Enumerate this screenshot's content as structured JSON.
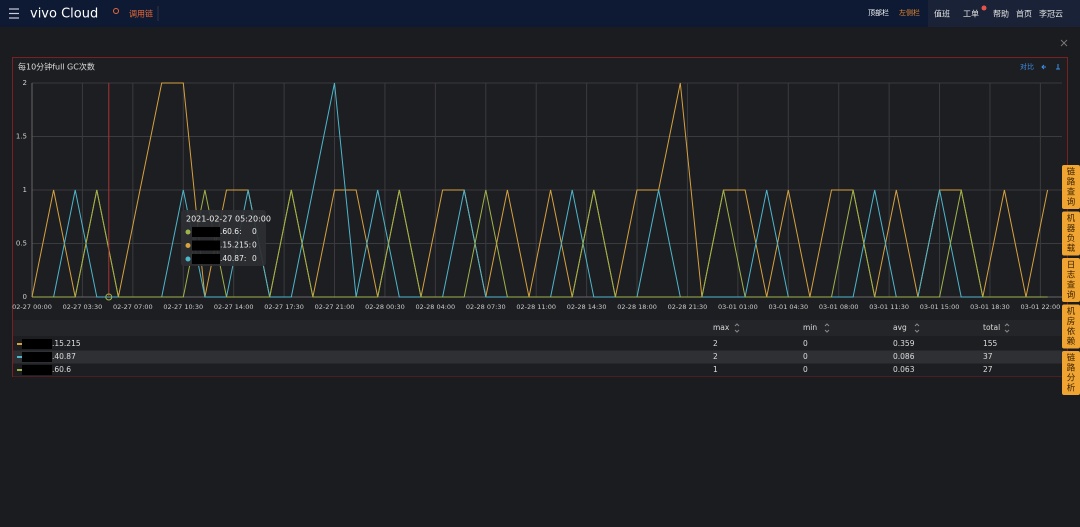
{
  "header": {
    "brand": "vivo Cloud",
    "app": "调用链",
    "layout_options": [
      "顶部栏",
      "左侧栏"
    ],
    "links": [
      "值班",
      "工单",
      "帮助",
      "首页",
      "李冠云"
    ]
  },
  "side_tabs": [
    "链路查询",
    "机器负载",
    "日志查询",
    "机房依赖",
    "链路分析"
  ],
  "chart_data": {
    "type": "line",
    "title": "每10分钟full GC次数",
    "compare": "对比",
    "x": [
      0,
      1.5,
      3,
      4.5,
      6,
      7.5,
      9,
      10.5,
      12,
      13.5,
      15,
      16.5,
      18,
      19.5,
      21,
      22.5,
      24,
      25.5,
      27,
      28.5,
      30,
      31.5,
      33,
      34.5,
      36,
      37.5,
      39,
      40.5,
      42,
      43.5,
      45,
      46.5,
      48,
      49.5,
      51,
      52.5,
      54,
      55.5,
      57,
      58.5,
      60,
      61.5,
      63,
      64.5,
      66,
      67.5,
      69,
      70.5
    ],
    "series": [
      {
        "name": ".15.215",
        "color": "#d6a13f",
        "values": [
          0,
          1,
          0,
          1,
          0,
          1,
          2,
          2,
          0,
          1,
          1,
          0,
          1,
          0,
          1,
          1,
          0,
          1,
          0,
          1,
          1,
          0,
          1,
          0,
          1,
          0,
          1,
          0,
          1,
          1,
          2,
          0,
          1,
          1,
          0,
          1,
          0,
          1,
          1,
          0,
          1,
          0,
          1,
          1,
          0,
          1,
          0,
          1
        ]
      },
      {
        "name": ".40.87",
        "color": "#4db6cc",
        "values": [
          0,
          0,
          1,
          0,
          0,
          0,
          0,
          1,
          0,
          0,
          1,
          0,
          0,
          1,
          2,
          0,
          1,
          0,
          0,
          0,
          1,
          0,
          0,
          0,
          0,
          1,
          0,
          0,
          0,
          1,
          0,
          0,
          0,
          0,
          1,
          0,
          0,
          0,
          0,
          1,
          0,
          0,
          1,
          0,
          0,
          0,
          0,
          0
        ]
      },
      {
        "name": ".60.6",
        "color": "#9fb24a",
        "values": [
          0,
          0,
          0,
          1,
          0,
          0,
          0,
          0,
          1,
          0,
          0,
          0,
          1,
          0,
          0,
          0,
          0,
          1,
          0,
          0,
          0,
          1,
          0,
          0,
          0,
          0,
          1,
          0,
          0,
          0,
          0,
          0,
          1,
          0,
          0,
          0,
          0,
          0,
          1,
          0,
          0,
          0,
          0,
          1,
          0,
          0,
          0,
          0
        ]
      }
    ],
    "xlim": [
      0,
      71.5
    ],
    "xticks": [
      {
        "value": 0,
        "label": "02-27 00:00"
      },
      {
        "value": 3.5,
        "label": "02-27 03:30"
      },
      {
        "value": 7,
        "label": "02-27 07:00"
      },
      {
        "value": 10.5,
        "label": "02-27 10:30"
      },
      {
        "value": 14,
        "label": "02-27 14:00"
      },
      {
        "value": 17.5,
        "label": "02-27 17:30"
      },
      {
        "value": 21,
        "label": "02-27 21:00"
      },
      {
        "value": 24.5,
        "label": "02-28 00:30"
      },
      {
        "value": 28,
        "label": "02-28 04:00"
      },
      {
        "value": 31.5,
        "label": "02-28 07:30"
      },
      {
        "value": 35,
        "label": "02-28 11:00"
      },
      {
        "value": 38.5,
        "label": "02-28 14:30"
      },
      {
        "value": 42,
        "label": "02-28 18:00"
      },
      {
        "value": 45.5,
        "label": "02-28 21:30"
      },
      {
        "value": 49,
        "label": "03-01 01:00"
      },
      {
        "value": 52.5,
        "label": "03-01 04:30"
      },
      {
        "value": 56,
        "label": "03-01 08:00"
      },
      {
        "value": 59.5,
        "label": "03-01 11:30"
      },
      {
        "value": 63,
        "label": "03-01 15:00"
      },
      {
        "value": 66.5,
        "label": "03-01 18:30"
      },
      {
        "value": 70,
        "label": "03-01 22:00"
      }
    ],
    "ylim": [
      0,
      2
    ],
    "yticks": [
      0,
      0.5,
      1,
      1.5,
      2
    ],
    "grid": true,
    "tooltip": {
      "time": "2021-02-27 05:20:00",
      "x": 5.33,
      "items": [
        {
          "name": ".60.6:",
          "color": "#9fb24a",
          "value": 0
        },
        {
          "name": ".15.215:",
          "color": "#d6a13f",
          "value": 0
        },
        {
          "name": ".40.87:",
          "color": "#4db6cc",
          "value": 0
        }
      ]
    },
    "stats": {
      "columns": [
        "max",
        "min",
        "avg",
        "total"
      ],
      "rows": [
        [
          2,
          0,
          0.359,
          155
        ],
        [
          2,
          0,
          0.086,
          37
        ],
        [
          1,
          0,
          0.063,
          27
        ]
      ]
    }
  }
}
